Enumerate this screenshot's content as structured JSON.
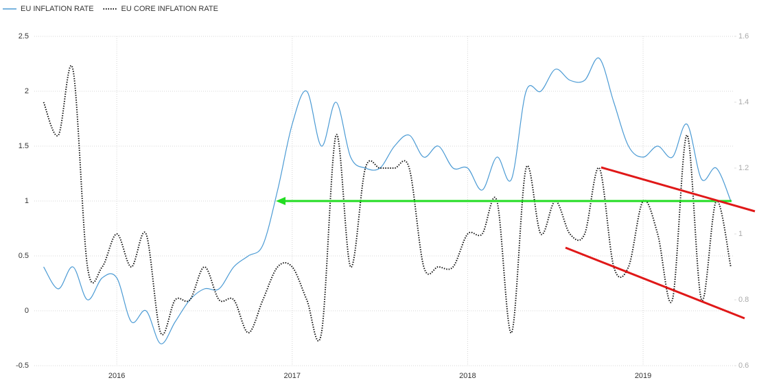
{
  "chart_data": {
    "type": "line",
    "x": [
      2015.583,
      2015.667,
      2015.75,
      2015.833,
      2015.917,
      2016,
      2016.083,
      2016.167,
      2016.25,
      2016.333,
      2016.417,
      2016.5,
      2016.583,
      2016.667,
      2016.75,
      2016.833,
      2016.917,
      2017,
      2017.083,
      2017.167,
      2017.25,
      2017.333,
      2017.417,
      2017.5,
      2017.583,
      2017.667,
      2017.75,
      2017.833,
      2017.917,
      2018,
      2018.083,
      2018.167,
      2018.25,
      2018.333,
      2018.417,
      2018.5,
      2018.583,
      2018.667,
      2018.75,
      2018.833,
      2018.917,
      2019,
      2019.083,
      2019.167,
      2019.25,
      2019.333,
      2019.417,
      2019.5
    ],
    "series": [
      {
        "name": "EU INFLATION RATE",
        "color": "#4a9ad4",
        "style": "solid",
        "values": [
          0.4,
          0.2,
          0.4,
          0.1,
          0.3,
          0.3,
          -0.1,
          0.0,
          -0.3,
          -0.1,
          0.1,
          0.2,
          0.2,
          0.4,
          0.5,
          0.6,
          1.1,
          1.7,
          2.0,
          1.5,
          1.9,
          1.4,
          1.3,
          1.3,
          1.5,
          1.6,
          1.4,
          1.5,
          1.3,
          1.3,
          1.1,
          1.4,
          1.2,
          2.0,
          2.0,
          2.2,
          2.1,
          2.1,
          2.3,
          1.9,
          1.5,
          1.4,
          1.5,
          1.4,
          1.7,
          1.2,
          1.3,
          1.0
        ]
      },
      {
        "name": "EU CORE INFLATION RATE",
        "color": "#111111",
        "style": "dotted",
        "axis": "y2",
        "values": [
          1.4,
          1.3,
          1.5,
          0.9,
          0.9,
          1.0,
          0.9,
          1.0,
          0.7,
          0.8,
          0.8,
          0.9,
          0.8,
          0.8,
          0.7,
          0.8,
          0.9,
          0.9,
          0.8,
          0.7,
          1.3,
          0.9,
          1.2,
          1.2,
          1.2,
          1.2,
          0.9,
          0.9,
          0.9,
          1.0,
          1.0,
          1.1,
          0.7,
          1.2,
          1.0,
          1.1,
          1.0,
          1.0,
          1.2,
          0.9,
          0.9,
          1.1,
          1.0,
          0.8,
          1.3,
          0.8,
          1.1,
          0.9
        ]
      }
    ],
    "xlim": [
      2015.53,
      2019.52
    ],
    "xticks": [
      2016,
      2017,
      2018,
      2019
    ],
    "ylim": [
      -0.5,
      2.5
    ],
    "yticks": [
      -0.5,
      0,
      0.5,
      1,
      1.5,
      2,
      2.5
    ],
    "y2lim": [
      0.6,
      1.6
    ],
    "y2ticks": [
      0.6,
      0.8,
      1,
      1.2,
      1.4,
      1.6
    ],
    "grid": true
  }
}
